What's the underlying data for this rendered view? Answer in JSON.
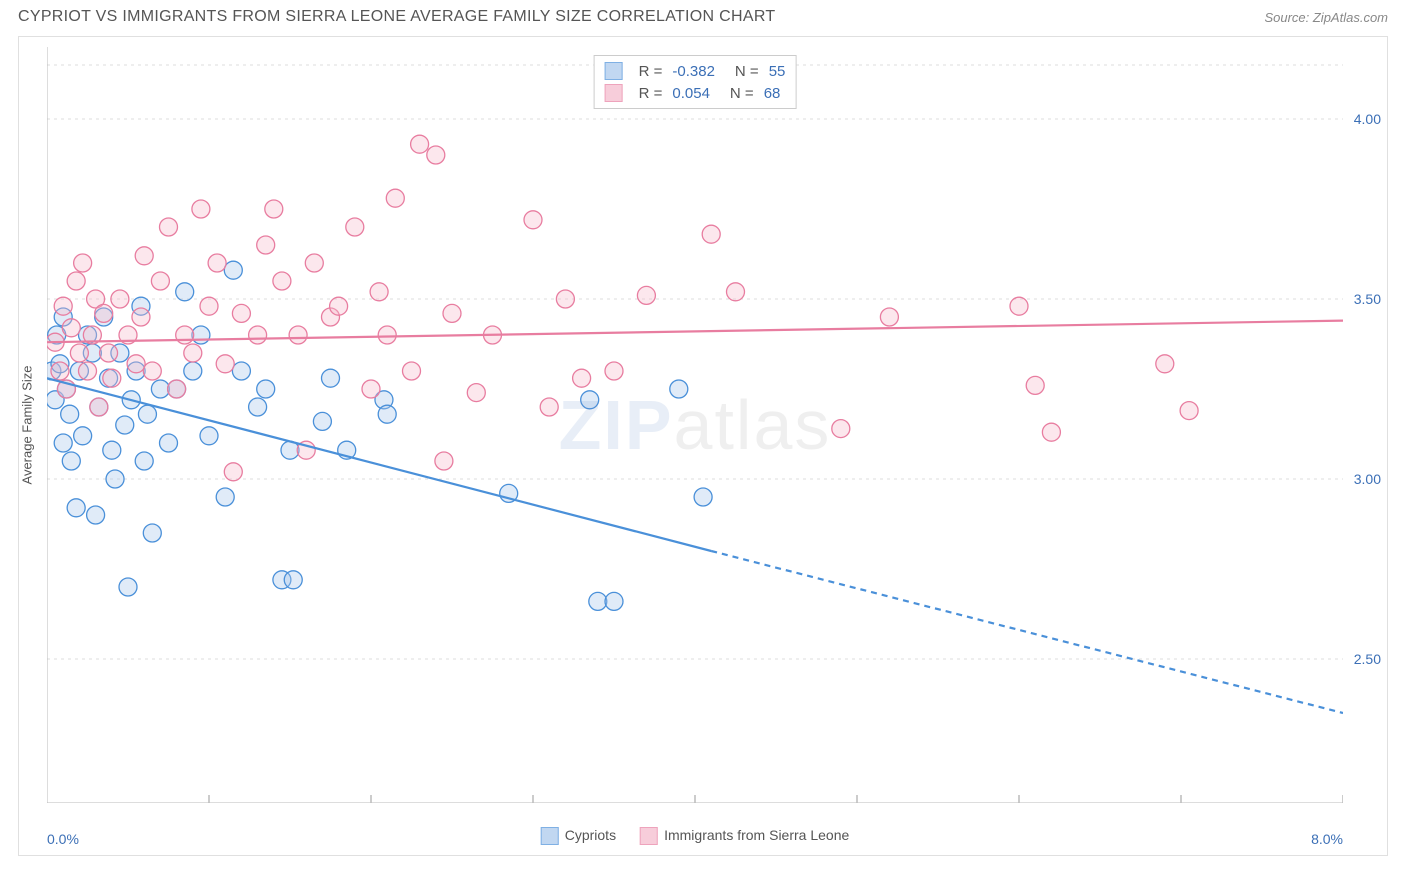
{
  "title": "CYPRIOT VS IMMIGRANTS FROM SIERRA LEONE AVERAGE FAMILY SIZE CORRELATION CHART",
  "source": "Source: ZipAtlas.com",
  "y_axis_label": "Average Family Size",
  "watermark_bold": "ZIP",
  "watermark_light": "atlas",
  "chart": {
    "type": "scatter",
    "background_color": "#ffffff",
    "grid_color": "#dddddd",
    "axis_line_color": "#cccccc",
    "xlim": [
      0,
      8
    ],
    "ylim": [
      2.1,
      4.2
    ],
    "x_ticks": [
      0,
      1,
      2,
      3,
      4,
      5,
      6,
      7,
      8
    ],
    "x_tick_labels_shown": {
      "0": "0.0%",
      "8": "8.0%"
    },
    "y_grid_lines": [
      2.5,
      3.0,
      3.5,
      4.0
    ],
    "y_tick_labels": [
      "2.50",
      "3.00",
      "3.50",
      "4.00"
    ],
    "marker_radius": 9,
    "marker_fill_opacity": 0.35,
    "marker_stroke_width": 1.3,
    "line_width": 2.2,
    "series": [
      {
        "name": "Cypriots",
        "color": "#4a90d9",
        "fill": "#a7c7ec",
        "R": "-0.382",
        "N": "55",
        "trend": {
          "x1": 0,
          "y1": 3.28,
          "x2": 4.1,
          "y2": 2.8,
          "x3": 8,
          "y3": 2.35,
          "dash_from": 4.1
        },
        "points": [
          [
            0.03,
            3.3
          ],
          [
            0.05,
            3.22
          ],
          [
            0.06,
            3.4
          ],
          [
            0.08,
            3.32
          ],
          [
            0.1,
            3.45
          ],
          [
            0.1,
            3.1
          ],
          [
            0.12,
            3.25
          ],
          [
            0.14,
            3.18
          ],
          [
            0.15,
            3.05
          ],
          [
            0.18,
            2.92
          ],
          [
            0.2,
            3.3
          ],
          [
            0.22,
            3.12
          ],
          [
            0.25,
            3.4
          ],
          [
            0.28,
            3.35
          ],
          [
            0.3,
            2.9
          ],
          [
            0.32,
            3.2
          ],
          [
            0.35,
            3.45
          ],
          [
            0.38,
            3.28
          ],
          [
            0.4,
            3.08
          ],
          [
            0.42,
            3.0
          ],
          [
            0.45,
            3.35
          ],
          [
            0.48,
            3.15
          ],
          [
            0.5,
            2.7
          ],
          [
            0.52,
            3.22
          ],
          [
            0.55,
            3.3
          ],
          [
            0.58,
            3.48
          ],
          [
            0.6,
            3.05
          ],
          [
            0.62,
            3.18
          ],
          [
            0.65,
            2.85
          ],
          [
            0.7,
            3.25
          ],
          [
            0.75,
            3.1
          ],
          [
            0.8,
            3.25
          ],
          [
            0.85,
            3.52
          ],
          [
            0.9,
            3.3
          ],
          [
            0.95,
            3.4
          ],
          [
            1.0,
            3.12
          ],
          [
            1.1,
            2.95
          ],
          [
            1.15,
            3.58
          ],
          [
            1.2,
            3.3
          ],
          [
            1.3,
            3.2
          ],
          [
            1.35,
            3.25
          ],
          [
            1.45,
            2.72
          ],
          [
            1.5,
            3.08
          ],
          [
            1.52,
            2.72
          ],
          [
            1.7,
            3.16
          ],
          [
            1.75,
            3.28
          ],
          [
            1.85,
            3.08
          ],
          [
            2.08,
            3.22
          ],
          [
            2.1,
            3.18
          ],
          [
            2.85,
            2.96
          ],
          [
            3.35,
            3.22
          ],
          [
            3.4,
            2.66
          ],
          [
            3.5,
            2.66
          ],
          [
            3.9,
            3.25
          ],
          [
            4.05,
            2.95
          ]
        ]
      },
      {
        "name": "Immigrants from Sierra Leone",
        "color": "#e87da0",
        "fill": "#f5b9cb",
        "R": "0.054",
        "N": "68",
        "trend": {
          "x1": 0,
          "y1": 3.38,
          "x2": 8,
          "y2": 3.44,
          "dash_from": null
        },
        "points": [
          [
            0.05,
            3.38
          ],
          [
            0.08,
            3.3
          ],
          [
            0.1,
            3.48
          ],
          [
            0.12,
            3.25
          ],
          [
            0.15,
            3.42
          ],
          [
            0.18,
            3.55
          ],
          [
            0.2,
            3.35
          ],
          [
            0.22,
            3.6
          ],
          [
            0.25,
            3.3
          ],
          [
            0.28,
            3.4
          ],
          [
            0.3,
            3.5
          ],
          [
            0.32,
            3.2
          ],
          [
            0.35,
            3.46
          ],
          [
            0.38,
            3.35
          ],
          [
            0.4,
            3.28
          ],
          [
            0.45,
            3.5
          ],
          [
            0.5,
            3.4
          ],
          [
            0.55,
            3.32
          ],
          [
            0.58,
            3.45
          ],
          [
            0.6,
            3.62
          ],
          [
            0.65,
            3.3
          ],
          [
            0.7,
            3.55
          ],
          [
            0.75,
            3.7
          ],
          [
            0.8,
            3.25
          ],
          [
            0.85,
            3.4
          ],
          [
            0.9,
            3.35
          ],
          [
            0.95,
            3.75
          ],
          [
            1.0,
            3.48
          ],
          [
            1.05,
            3.6
          ],
          [
            1.1,
            3.32
          ],
          [
            1.15,
            3.02
          ],
          [
            1.2,
            3.46
          ],
          [
            1.3,
            3.4
          ],
          [
            1.35,
            3.65
          ],
          [
            1.4,
            3.75
          ],
          [
            1.45,
            3.55
          ],
          [
            1.55,
            3.4
          ],
          [
            1.6,
            3.08
          ],
          [
            1.65,
            3.6
          ],
          [
            1.75,
            3.45
          ],
          [
            1.8,
            3.48
          ],
          [
            1.9,
            3.7
          ],
          [
            2.0,
            3.25
          ],
          [
            2.05,
            3.52
          ],
          [
            2.1,
            3.4
          ],
          [
            2.15,
            3.78
          ],
          [
            2.25,
            3.3
          ],
          [
            2.3,
            3.93
          ],
          [
            2.4,
            3.9
          ],
          [
            2.45,
            3.05
          ],
          [
            2.5,
            3.46
          ],
          [
            2.65,
            3.24
          ],
          [
            2.75,
            3.4
          ],
          [
            3.0,
            3.72
          ],
          [
            3.1,
            3.2
          ],
          [
            3.2,
            3.5
          ],
          [
            3.3,
            3.28
          ],
          [
            3.5,
            3.3
          ],
          [
            3.7,
            3.51
          ],
          [
            4.1,
            3.68
          ],
          [
            4.25,
            3.52
          ],
          [
            4.9,
            3.14
          ],
          [
            5.2,
            3.45
          ],
          [
            6.0,
            3.48
          ],
          [
            6.1,
            3.26
          ],
          [
            6.2,
            3.13
          ],
          [
            6.9,
            3.32
          ],
          [
            7.05,
            3.19
          ]
        ]
      }
    ]
  },
  "bottom_legend": [
    {
      "label": "Cypriots",
      "fill": "#a7c7ec",
      "stroke": "#4a90d9"
    },
    {
      "label": "Immigrants from Sierra Leone",
      "fill": "#f5b9cb",
      "stroke": "#e87da0"
    }
  ]
}
